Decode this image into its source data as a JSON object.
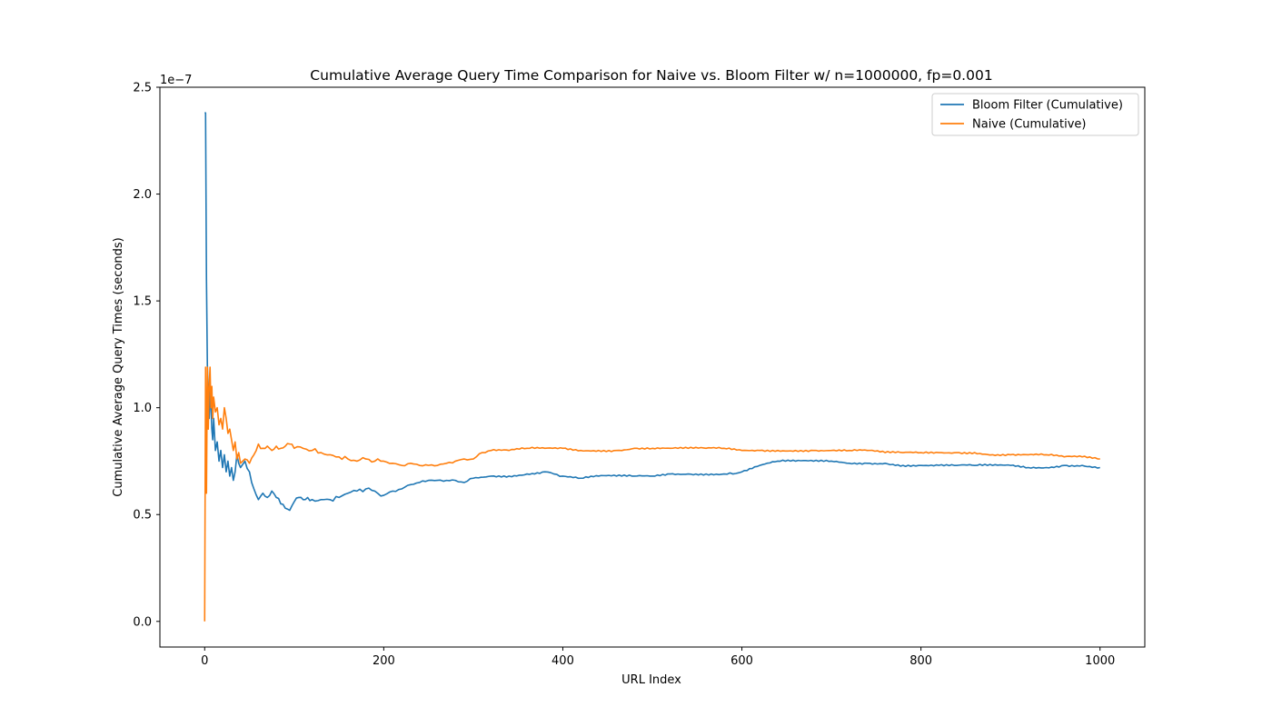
{
  "chart_data": {
    "type": "line",
    "title": "Cumulative Average Query Time Comparison for Naive vs. Bloom Filter w/ n=1000000, fp=0.001",
    "xlabel": "URL Index",
    "ylabel": "Cumulative Average Query Times  (seconds)",
    "y_offset_label": "1e−7",
    "xlim": [
      -50,
      1050
    ],
    "ylim": [
      -0.12,
      2.5
    ],
    "y_scale_factor": 1e-07,
    "xticks": [
      0,
      200,
      400,
      600,
      800,
      1000
    ],
    "xtick_labels": [
      "0",
      "200",
      "400",
      "600",
      "800",
      "1000"
    ],
    "yticks": [
      0.0,
      0.5,
      1.0,
      1.5,
      2.0,
      2.5
    ],
    "ytick_labels": [
      "0.0",
      "0.5",
      "1.0",
      "1.5",
      "2.0",
      "2.5"
    ],
    "grid": false,
    "legend_position": "top-right",
    "series": [
      {
        "name": "Bloom Filter (Cumulative)",
        "color": "#1f77b4",
        "x": [
          0,
          1,
          2,
          3,
          4,
          5,
          6,
          7,
          8,
          9,
          10,
          12,
          14,
          16,
          18,
          20,
          22,
          24,
          26,
          28,
          30,
          32,
          34,
          36,
          38,
          40,
          45,
          50,
          55,
          60,
          65,
          70,
          75,
          80,
          85,
          90,
          95,
          100,
          105,
          110,
          115,
          120,
          130,
          140,
          150,
          160,
          170,
          180,
          190,
          200,
          210,
          220,
          230,
          240,
          250,
          260,
          270,
          280,
          290,
          300,
          320,
          340,
          360,
          380,
          390,
          400,
          420,
          440,
          460,
          480,
          500,
          520,
          540,
          560,
          580,
          590,
          600,
          620,
          640,
          660,
          680,
          700,
          720,
          740,
          760,
          780,
          800,
          820,
          840,
          860,
          880,
          900,
          920,
          940,
          960,
          980,
          1000
        ],
        "y": [
          2.38,
          2.38,
          1.6,
          1.2,
          1.05,
          0.95,
          1.1,
          1.0,
          0.9,
          0.85,
          0.95,
          0.8,
          0.84,
          0.75,
          0.8,
          0.72,
          0.78,
          0.7,
          0.75,
          0.68,
          0.72,
          0.66,
          0.7,
          0.78,
          0.74,
          0.72,
          0.75,
          0.7,
          0.62,
          0.57,
          0.6,
          0.58,
          0.61,
          0.58,
          0.55,
          0.53,
          0.52,
          0.56,
          0.58,
          0.57,
          0.58,
          0.57,
          0.57,
          0.57,
          0.58,
          0.6,
          0.61,
          0.62,
          0.61,
          0.59,
          0.61,
          0.62,
          0.64,
          0.65,
          0.66,
          0.66,
          0.66,
          0.66,
          0.65,
          0.67,
          0.68,
          0.68,
          0.69,
          0.7,
          0.69,
          0.68,
          0.67,
          0.68,
          0.68,
          0.68,
          0.68,
          0.69,
          0.69,
          0.69,
          0.69,
          0.69,
          0.7,
          0.73,
          0.75,
          0.75,
          0.75,
          0.75,
          0.74,
          0.74,
          0.74,
          0.73,
          0.73,
          0.73,
          0.73,
          0.73,
          0.73,
          0.73,
          0.72,
          0.72,
          0.73,
          0.73,
          0.72
        ]
      },
      {
        "name": "Naive (Cumulative)",
        "color": "#ff7f0e",
        "x": [
          0,
          1,
          2,
          3,
          4,
          5,
          6,
          7,
          8,
          9,
          10,
          12,
          14,
          16,
          18,
          20,
          22,
          24,
          26,
          28,
          30,
          32,
          34,
          36,
          38,
          40,
          45,
          50,
          55,
          60,
          65,
          70,
          75,
          80,
          85,
          90,
          95,
          100,
          110,
          120,
          130,
          140,
          150,
          160,
          170,
          180,
          190,
          200,
          210,
          220,
          230,
          240,
          250,
          260,
          270,
          280,
          290,
          300,
          310,
          320,
          340,
          360,
          380,
          400,
          420,
          440,
          460,
          480,
          500,
          520,
          540,
          560,
          580,
          600,
          620,
          640,
          660,
          680,
          700,
          720,
          740,
          760,
          780,
          800,
          820,
          840,
          860,
          880,
          900,
          920,
          940,
          960,
          980,
          1000
        ],
        "y": [
          0.0,
          1.19,
          0.6,
          1.19,
          0.9,
          1.1,
          1.19,
          1.0,
          1.1,
          0.95,
          1.05,
          0.98,
          1.0,
          0.92,
          0.95,
          0.9,
          1.0,
          0.95,
          0.88,
          0.9,
          0.85,
          0.8,
          0.84,
          0.76,
          0.79,
          0.74,
          0.76,
          0.74,
          0.78,
          0.83,
          0.81,
          0.82,
          0.8,
          0.82,
          0.81,
          0.82,
          0.83,
          0.81,
          0.81,
          0.8,
          0.79,
          0.78,
          0.77,
          0.76,
          0.75,
          0.76,
          0.75,
          0.75,
          0.74,
          0.73,
          0.74,
          0.73,
          0.73,
          0.73,
          0.74,
          0.75,
          0.76,
          0.76,
          0.79,
          0.8,
          0.8,
          0.81,
          0.81,
          0.81,
          0.8,
          0.8,
          0.8,
          0.81,
          0.81,
          0.81,
          0.81,
          0.81,
          0.81,
          0.8,
          0.8,
          0.8,
          0.8,
          0.8,
          0.8,
          0.8,
          0.8,
          0.79,
          0.79,
          0.79,
          0.79,
          0.79,
          0.79,
          0.78,
          0.78,
          0.78,
          0.78,
          0.77,
          0.77,
          0.76
        ]
      }
    ]
  }
}
